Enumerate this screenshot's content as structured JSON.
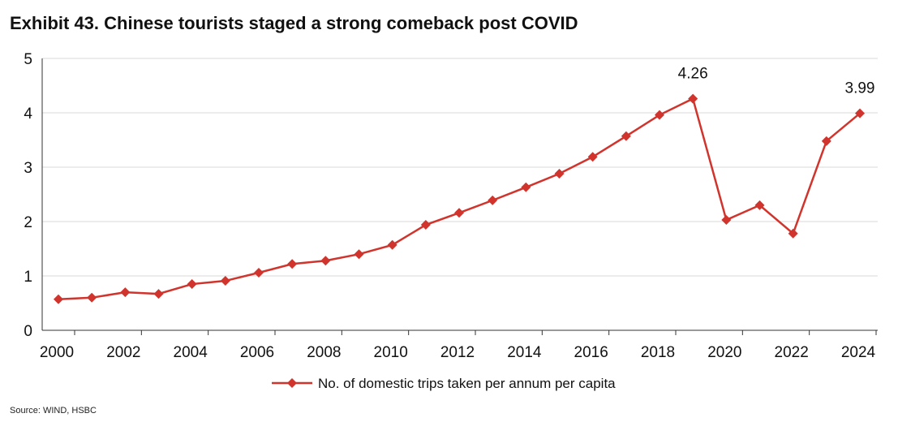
{
  "chart_data": {
    "type": "line",
    "title": "Exhibit 43. Chinese tourists staged a strong comeback post COVID",
    "x": [
      2000,
      2001,
      2002,
      2003,
      2004,
      2005,
      2006,
      2007,
      2008,
      2009,
      2010,
      2011,
      2012,
      2013,
      2014,
      2015,
      2016,
      2017,
      2018,
      2019,
      2020,
      2021,
      2022,
      2023,
      2024
    ],
    "series": [
      {
        "name": "No. of domestic trips taken per annum per capita",
        "color": "#d0342c",
        "values": [
          0.57,
          0.6,
          0.7,
          0.67,
          0.85,
          0.91,
          1.06,
          1.22,
          1.28,
          1.4,
          1.57,
          1.94,
          2.16,
          2.39,
          2.63,
          2.88,
          3.19,
          3.57,
          3.96,
          4.26,
          2.03,
          2.3,
          1.78,
          3.48,
          3.99
        ]
      }
    ],
    "data_labels": [
      {
        "x": 2019,
        "text": "4.26"
      },
      {
        "x": 2024,
        "text": "3.99"
      }
    ],
    "xticklabels": [
      "2000",
      "2002",
      "2004",
      "2006",
      "2008",
      "2010",
      "2012",
      "2014",
      "2016",
      "2018",
      "2020",
      "2022",
      "2024"
    ],
    "yticklabels": [
      "0",
      "1",
      "2",
      "3",
      "4",
      "5"
    ],
    "ylim": [
      0,
      5
    ],
    "xlabel": "",
    "ylabel": "",
    "grid": true,
    "legend": "bottom-center"
  },
  "source": "Source: WIND, HSBC"
}
